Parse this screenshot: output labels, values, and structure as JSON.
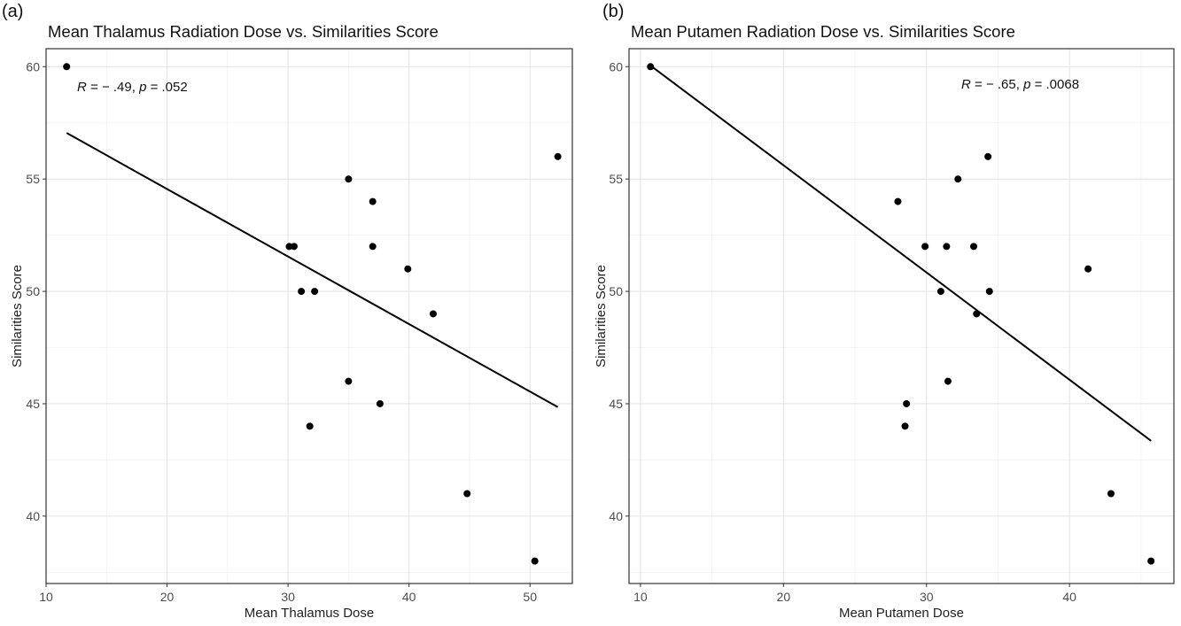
{
  "panels": {
    "a": {
      "letter": "(a)"
    },
    "b": {
      "letter": "(b)"
    }
  },
  "chart_data": [
    {
      "type": "scatter",
      "panel": "(a)",
      "title": "Mean Thalamus Radiation Dose vs. Similarities Score",
      "xlabel": "Mean Thalamus Dose",
      "ylabel": "Similarities Score",
      "xlim": [
        10,
        53.5
      ],
      "ylim": [
        37,
        60.8
      ],
      "xticks": [
        10,
        20,
        30,
        40,
        50
      ],
      "yticks": [
        40,
        45,
        50,
        55,
        60
      ],
      "grid": true,
      "points": [
        {
          "x": 11.7,
          "y": 60
        },
        {
          "x": 30.1,
          "y": 52
        },
        {
          "x": 30.5,
          "y": 52
        },
        {
          "x": 31.1,
          "y": 50
        },
        {
          "x": 32.2,
          "y": 50
        },
        {
          "x": 35.0,
          "y": 55
        },
        {
          "x": 35.0,
          "y": 46
        },
        {
          "x": 31.8,
          "y": 44
        },
        {
          "x": 37.0,
          "y": 54
        },
        {
          "x": 37.0,
          "y": 52
        },
        {
          "x": 37.6,
          "y": 45
        },
        {
          "x": 39.9,
          "y": 51
        },
        {
          "x": 42.0,
          "y": 49
        },
        {
          "x": 44.8,
          "y": 41
        },
        {
          "x": 50.4,
          "y": 38
        },
        {
          "x": 52.3,
          "y": 56
        }
      ],
      "fit_line": {
        "x": [
          11.7,
          52.3
        ],
        "y": [
          57.05,
          44.85
        ]
      },
      "annotation": {
        "r_label": "R",
        "r_text": " = − .49, ",
        "p_label": "p",
        "p_text": " = .052"
      }
    },
    {
      "type": "scatter",
      "panel": "(b)",
      "title": "Mean Putamen Radiation Dose vs. Similarities Score",
      "xlabel": "Mean Putamen Dose",
      "ylabel": "Similarities Score",
      "xlim": [
        9.2,
        47.3
      ],
      "ylim": [
        37,
        60.8
      ],
      "xticks": [
        10,
        20,
        30,
        40
      ],
      "yticks": [
        40,
        45,
        50,
        55,
        60
      ],
      "grid": true,
      "points": [
        {
          "x": 10.7,
          "y": 60
        },
        {
          "x": 28.0,
          "y": 54
        },
        {
          "x": 29.9,
          "y": 52
        },
        {
          "x": 31.0,
          "y": 50
        },
        {
          "x": 31.4,
          "y": 52
        },
        {
          "x": 31.5,
          "y": 46
        },
        {
          "x": 28.6,
          "y": 45
        },
        {
          "x": 28.5,
          "y": 44
        },
        {
          "x": 32.2,
          "y": 55
        },
        {
          "x": 33.3,
          "y": 52
        },
        {
          "x": 33.5,
          "y": 49
        },
        {
          "x": 34.3,
          "y": 56
        },
        {
          "x": 34.4,
          "y": 50
        },
        {
          "x": 41.3,
          "y": 51
        },
        {
          "x": 42.9,
          "y": 41
        },
        {
          "x": 45.7,
          "y": 38
        }
      ],
      "fit_line": {
        "x": [
          10.7,
          45.7
        ],
        "y": [
          60.05,
          43.35
        ]
      },
      "annotation": {
        "r_label": "R",
        "r_text": " = − .65, ",
        "p_label": "p",
        "p_text": " = .0068"
      }
    }
  ]
}
